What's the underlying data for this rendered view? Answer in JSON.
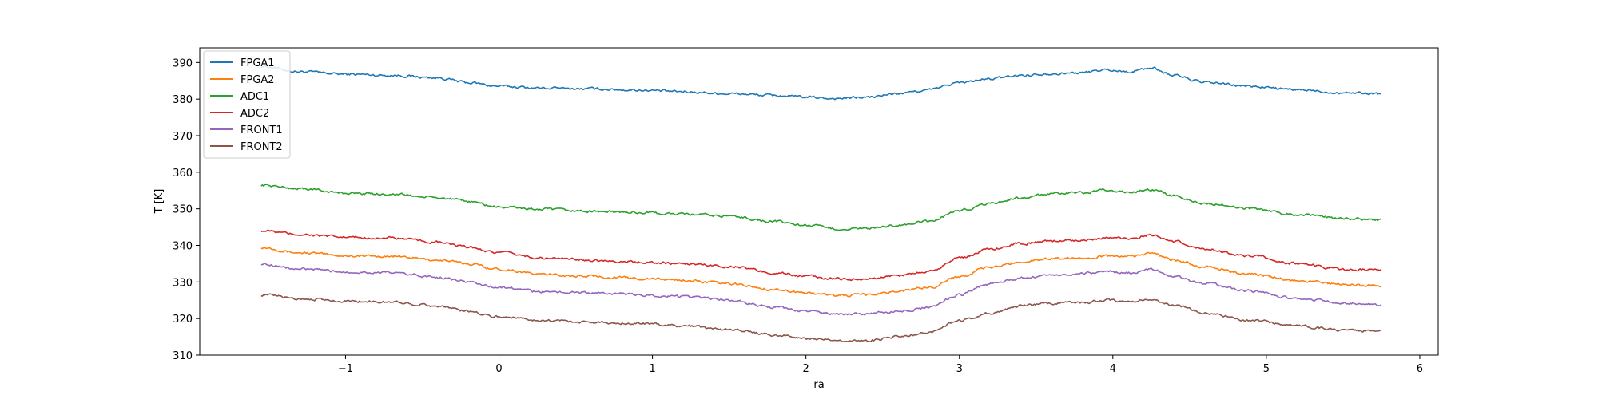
{
  "chart_data": {
    "type": "line",
    "title": "",
    "xlabel": "ra",
    "ylabel": "T [K]",
    "xlim": [
      -1.95,
      6.12
    ],
    "ylim": [
      310,
      394
    ],
    "xticks": [
      -1,
      0,
      1,
      2,
      3,
      4,
      5,
      6
    ],
    "yticks": [
      310,
      320,
      330,
      340,
      350,
      360,
      370,
      380,
      390
    ],
    "xtick_labels": [
      "−1",
      "0",
      "1",
      "2",
      "3",
      "4",
      "5",
      "6"
    ],
    "ytick_labels": [
      "310",
      "320",
      "330",
      "340",
      "350",
      "360",
      "370",
      "380",
      "390"
    ],
    "grid": false,
    "legend_position": "top-left",
    "x": [
      -1.55,
      -1.3,
      -1.0,
      -0.7,
      -0.4,
      -0.2,
      0.0,
      0.3,
      0.6,
      0.9,
      1.2,
      1.5,
      1.8,
      2.0,
      2.2,
      2.4,
      2.6,
      2.8,
      3.0,
      3.2,
      3.4,
      3.6,
      3.8,
      3.95,
      4.1,
      4.25,
      4.4,
      4.6,
      4.9,
      5.2,
      5.5,
      5.75
    ],
    "series": [
      {
        "name": "FPGA1",
        "color": "#1f77b4",
        "values": [
          389.0,
          387.5,
          386.8,
          386.5,
          385.8,
          384.5,
          383.5,
          383.0,
          382.8,
          382.5,
          382.0,
          381.5,
          381.0,
          380.5,
          380.2,
          380.5,
          381.5,
          382.5,
          384.5,
          385.5,
          386.5,
          387.0,
          387.2,
          388.0,
          387.5,
          388.5,
          386.5,
          384.5,
          383.5,
          382.5,
          381.8,
          381.5
        ]
      },
      {
        "name": "FPGA2",
        "color": "#ff7f0e",
        "values": [
          339.5,
          338.0,
          337.2,
          337.0,
          336.0,
          335.0,
          333.5,
          332.0,
          331.5,
          331.0,
          330.5,
          329.5,
          328.0,
          327.0,
          326.3,
          326.5,
          327.5,
          328.5,
          331.5,
          334.0,
          335.5,
          336.5,
          336.5,
          337.0,
          337.0,
          337.8,
          336.0,
          334.0,
          332.0,
          330.5,
          329.3,
          329.0
        ]
      },
      {
        "name": "ADC1",
        "color": "#2ca02c",
        "values": [
          356.5,
          355.5,
          354.3,
          354.0,
          353.0,
          352.0,
          350.5,
          349.8,
          349.3,
          349.0,
          348.5,
          348.0,
          346.5,
          345.5,
          344.5,
          344.5,
          345.5,
          346.5,
          349.5,
          351.5,
          353.0,
          354.0,
          354.3,
          355.0,
          354.5,
          355.3,
          353.5,
          351.5,
          350.0,
          348.5,
          347.3,
          347.0
        ]
      },
      {
        "name": "ADC2",
        "color": "#d62728",
        "values": [
          344.0,
          343.0,
          342.2,
          342.0,
          340.8,
          339.5,
          338.0,
          336.5,
          336.0,
          335.5,
          335.0,
          334.3,
          332.5,
          331.5,
          330.8,
          330.8,
          331.8,
          333.0,
          336.5,
          339.0,
          340.5,
          341.2,
          341.5,
          342.0,
          341.8,
          342.8,
          341.0,
          339.0,
          337.0,
          335.0,
          333.5,
          333.2
        ]
      },
      {
        "name": "FRONT1",
        "color": "#9467bd",
        "values": [
          335.0,
          333.5,
          332.8,
          332.5,
          331.3,
          330.0,
          328.5,
          327.3,
          327.0,
          326.5,
          326.0,
          325.0,
          323.0,
          322.0,
          321.2,
          321.2,
          322.0,
          323.0,
          326.5,
          329.5,
          331.0,
          332.0,
          332.3,
          333.0,
          332.5,
          333.5,
          331.5,
          329.5,
          327.5,
          325.5,
          324.3,
          324.0
        ]
      },
      {
        "name": "FRONT2",
        "color": "#8c564b",
        "values": [
          326.5,
          325.5,
          324.8,
          324.5,
          323.5,
          322.0,
          320.5,
          319.5,
          319.0,
          318.7,
          318.0,
          317.0,
          315.5,
          314.5,
          314.0,
          314.0,
          315.0,
          316.0,
          319.5,
          321.5,
          323.5,
          324.2,
          324.3,
          325.0,
          324.5,
          325.3,
          323.5,
          321.5,
          319.5,
          318.0,
          316.8,
          316.5
        ]
      }
    ]
  }
}
